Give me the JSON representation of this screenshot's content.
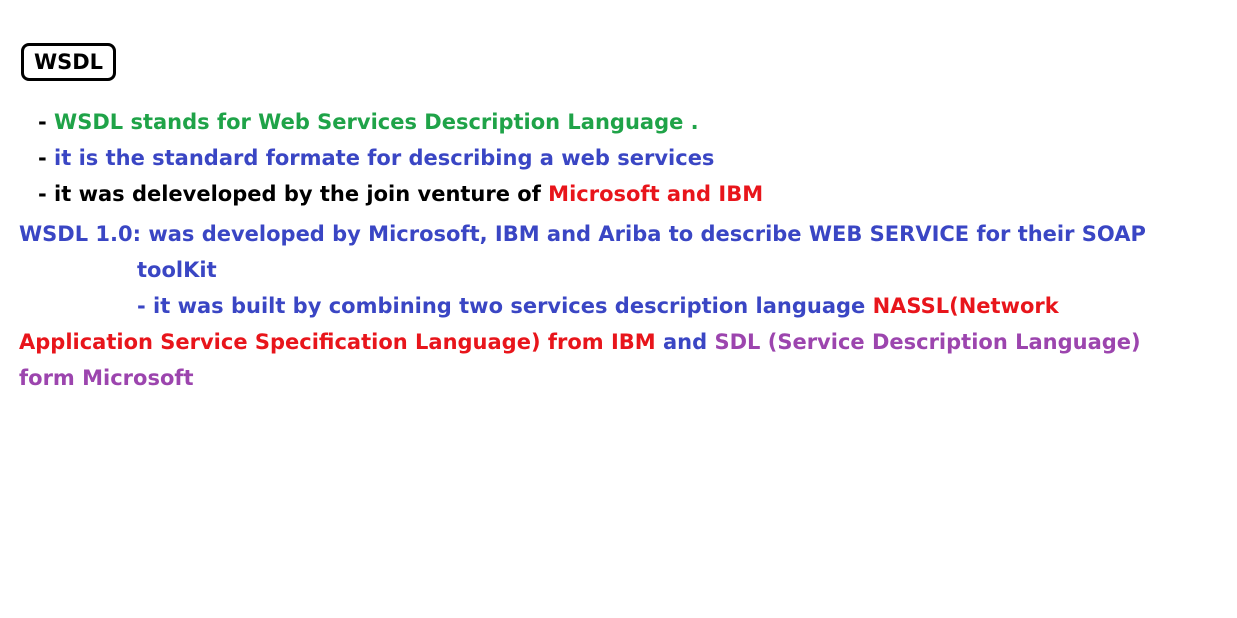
{
  "title": "WSDL",
  "colors": {
    "black": "#000000",
    "green": "#1fa348",
    "blue": "#3a46c4",
    "red": "#e8151b",
    "purple": "#9c45ae"
  },
  "lines": [
    {
      "segments": [
        {
          "text": "- ",
          "color": "black"
        },
        {
          "text": "WSDL stands for Web Services Description Language .",
          "color": "green"
        }
      ]
    },
    {
      "segments": [
        {
          "text": "- ",
          "color": "black"
        },
        {
          "text": "it is the standard formate  for describing a web services",
          "color": "blue"
        }
      ]
    },
    {
      "segments": [
        {
          "text": "- it was deleveloped by the join venture of ",
          "color": "black"
        },
        {
          "text": "Microsoft and IBM",
          "color": "red"
        }
      ]
    },
    {
      "segments": [
        {
          "text": "WSDL 1.0: was developed by Microsoft, IBM and Ariba to describe WEB SERVICE for their SOAP",
          "color": "blue"
        }
      ]
    },
    {
      "segments": [
        {
          "text": "toolKit",
          "color": "blue"
        }
      ]
    },
    {
      "segments": [
        {
          "text": "- it was built by combining two services description language ",
          "color": "blue"
        },
        {
          "text": "NASSL(Network",
          "color": "red"
        }
      ]
    },
    {
      "segments": [
        {
          "text": "Application Service Specification Language) from IBM",
          "color": "red"
        },
        {
          "text": " and ",
          "color": "blue"
        },
        {
          "text": "SDL (Service Description Language)",
          "color": "purple"
        }
      ]
    },
    {
      "segments": [
        {
          "text": "form Microsoft",
          "color": "purple"
        }
      ]
    }
  ]
}
